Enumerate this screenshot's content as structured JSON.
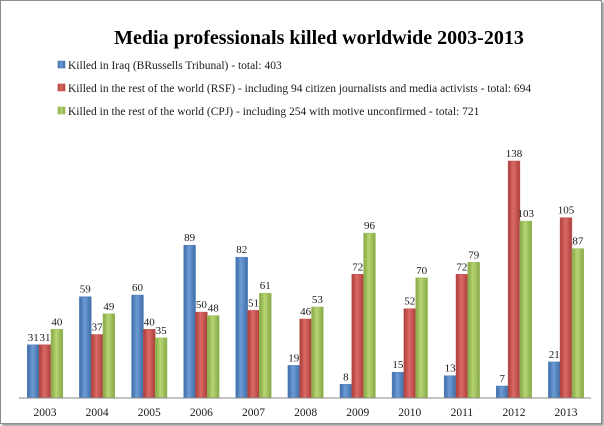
{
  "chart_data": {
    "type": "bar",
    "title": "Media professionals killed worldwide 2003-2013",
    "categories": [
      "2003",
      "2004",
      "2005",
      "2006",
      "2007",
      "2008",
      "2009",
      "2010",
      "2011",
      "2012",
      "2013"
    ],
    "series": [
      {
        "name": "Killed in Iraq (BRussells Tribunal) - total: 403",
        "color": "#4f81bd",
        "values": [
          31,
          59,
          60,
          89,
          82,
          19,
          8,
          15,
          13,
          7,
          21
        ]
      },
      {
        "name": "Killed in the rest of the world (RSF) - including 94 citizen journalists and media activists - total: 694",
        "color": "#c0504d",
        "values": [
          31,
          37,
          40,
          50,
          51,
          46,
          72,
          52,
          72,
          138,
          105
        ]
      },
      {
        "name": "Killed in the rest of the world (CPJ) - including 254 with motive unconfirmed - total: 721",
        "color": "#9bbb59",
        "values": [
          40,
          49,
          35,
          48,
          61,
          53,
          96,
          70,
          79,
          103,
          87
        ]
      }
    ],
    "xlabel": "",
    "ylabel": "",
    "ylim": [
      0,
      140
    ],
    "grid": false,
    "legend_position": "top-left",
    "data_labels": true
  }
}
